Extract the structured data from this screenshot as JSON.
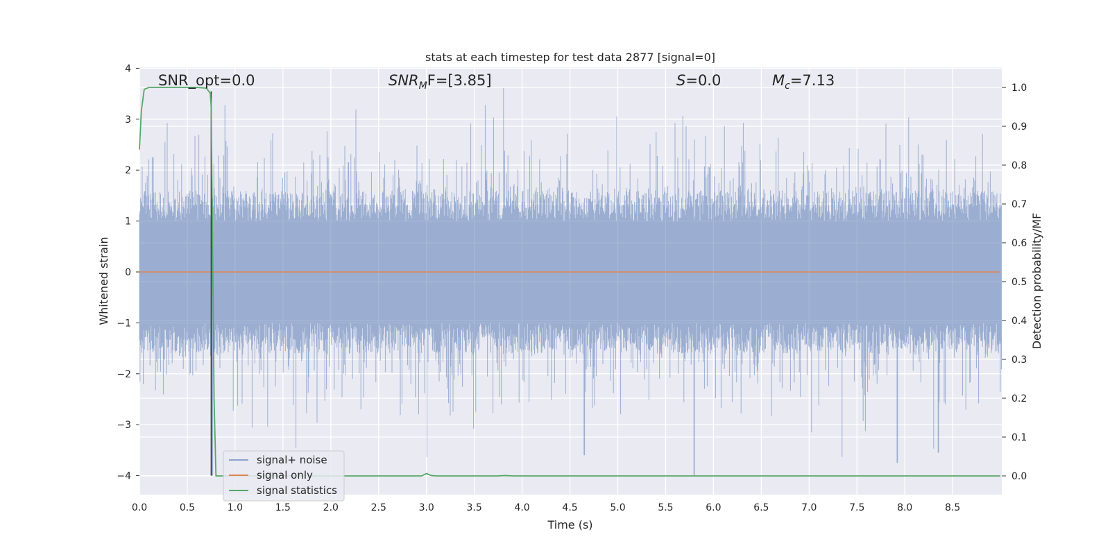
{
  "chart_data": {
    "type": "line",
    "title": "stats at each timestep for test data 2877 [signal=0]",
    "xlabel": "Time (s)",
    "ylabel": "Whitened strain",
    "ylabel_right": "Detection probability/MF",
    "xlim": [
      0.0,
      9.0
    ],
    "ylim": [
      -4.38,
      4.0
    ],
    "ylim_right": [
      -0.048,
      1.045
    ],
    "xticks": [
      "0.0",
      "0.5",
      "1.0",
      "1.5",
      "2.0",
      "2.5",
      "3.0",
      "3.5",
      "4.0",
      "4.5",
      "5.0",
      "5.5",
      "6.0",
      "6.5",
      "7.0",
      "7.5",
      "8.0",
      "8.5"
    ],
    "yticks": [
      "4",
      "3",
      "2",
      "1",
      "0",
      "−1",
      "−2",
      "−3",
      "−4"
    ],
    "yticks_right": [
      "1.0",
      "0.9",
      "0.8",
      "0.7",
      "0.6",
      "0.5",
      "0.4",
      "0.3",
      "0.2",
      "0.1",
      "0.0"
    ],
    "annotations": [
      {
        "id": "snr-opt",
        "text": "SNR_opt=0.0"
      },
      {
        "id": "snr-mf",
        "main": "SNR",
        "sub": "M",
        "rest": "F=[3.85]"
      },
      {
        "id": "s",
        "main": "S",
        "rest": "=0.0"
      },
      {
        "id": "mc",
        "main": "M",
        "sub": "c",
        "rest": "=7.13"
      }
    ],
    "legend_position": "lower-left",
    "grid": true,
    "colors": {
      "axes_bg": "#eaeaf2",
      "grid": "#ffffff",
      "noise": "#4c72b0",
      "signal": "#dd8452",
      "stats": "#55a868",
      "vline": "#333333"
    },
    "vline_x": 0.75,
    "series": [
      {
        "name": "signal+ noise",
        "axis": "left",
        "description_range": [
          -4.0,
          3.65
        ]
      },
      {
        "name": "signal only",
        "axis": "left",
        "x": [
          0.0,
          9.0
        ],
        "y": [
          0.0,
          0.0
        ]
      },
      {
        "name": "signal statistics",
        "axis": "right",
        "x": [
          0.0,
          0.02,
          0.05,
          0.1,
          0.2,
          0.4,
          0.6,
          0.7,
          0.74,
          0.75,
          0.76,
          0.78,
          0.8,
          0.9,
          2.95,
          3.0,
          3.05,
          3.1,
          3.75,
          3.82,
          3.9,
          9.0
        ],
        "y": [
          0.84,
          0.94,
          0.995,
          1.0,
          1.0,
          1.0,
          1.0,
          0.998,
          0.985,
          0.95,
          0.7,
          0.2,
          0.0,
          0.0,
          0.0,
          0.006,
          0.001,
          0.0,
          0.0,
          0.001,
          0.0,
          0.0
        ]
      }
    ]
  }
}
